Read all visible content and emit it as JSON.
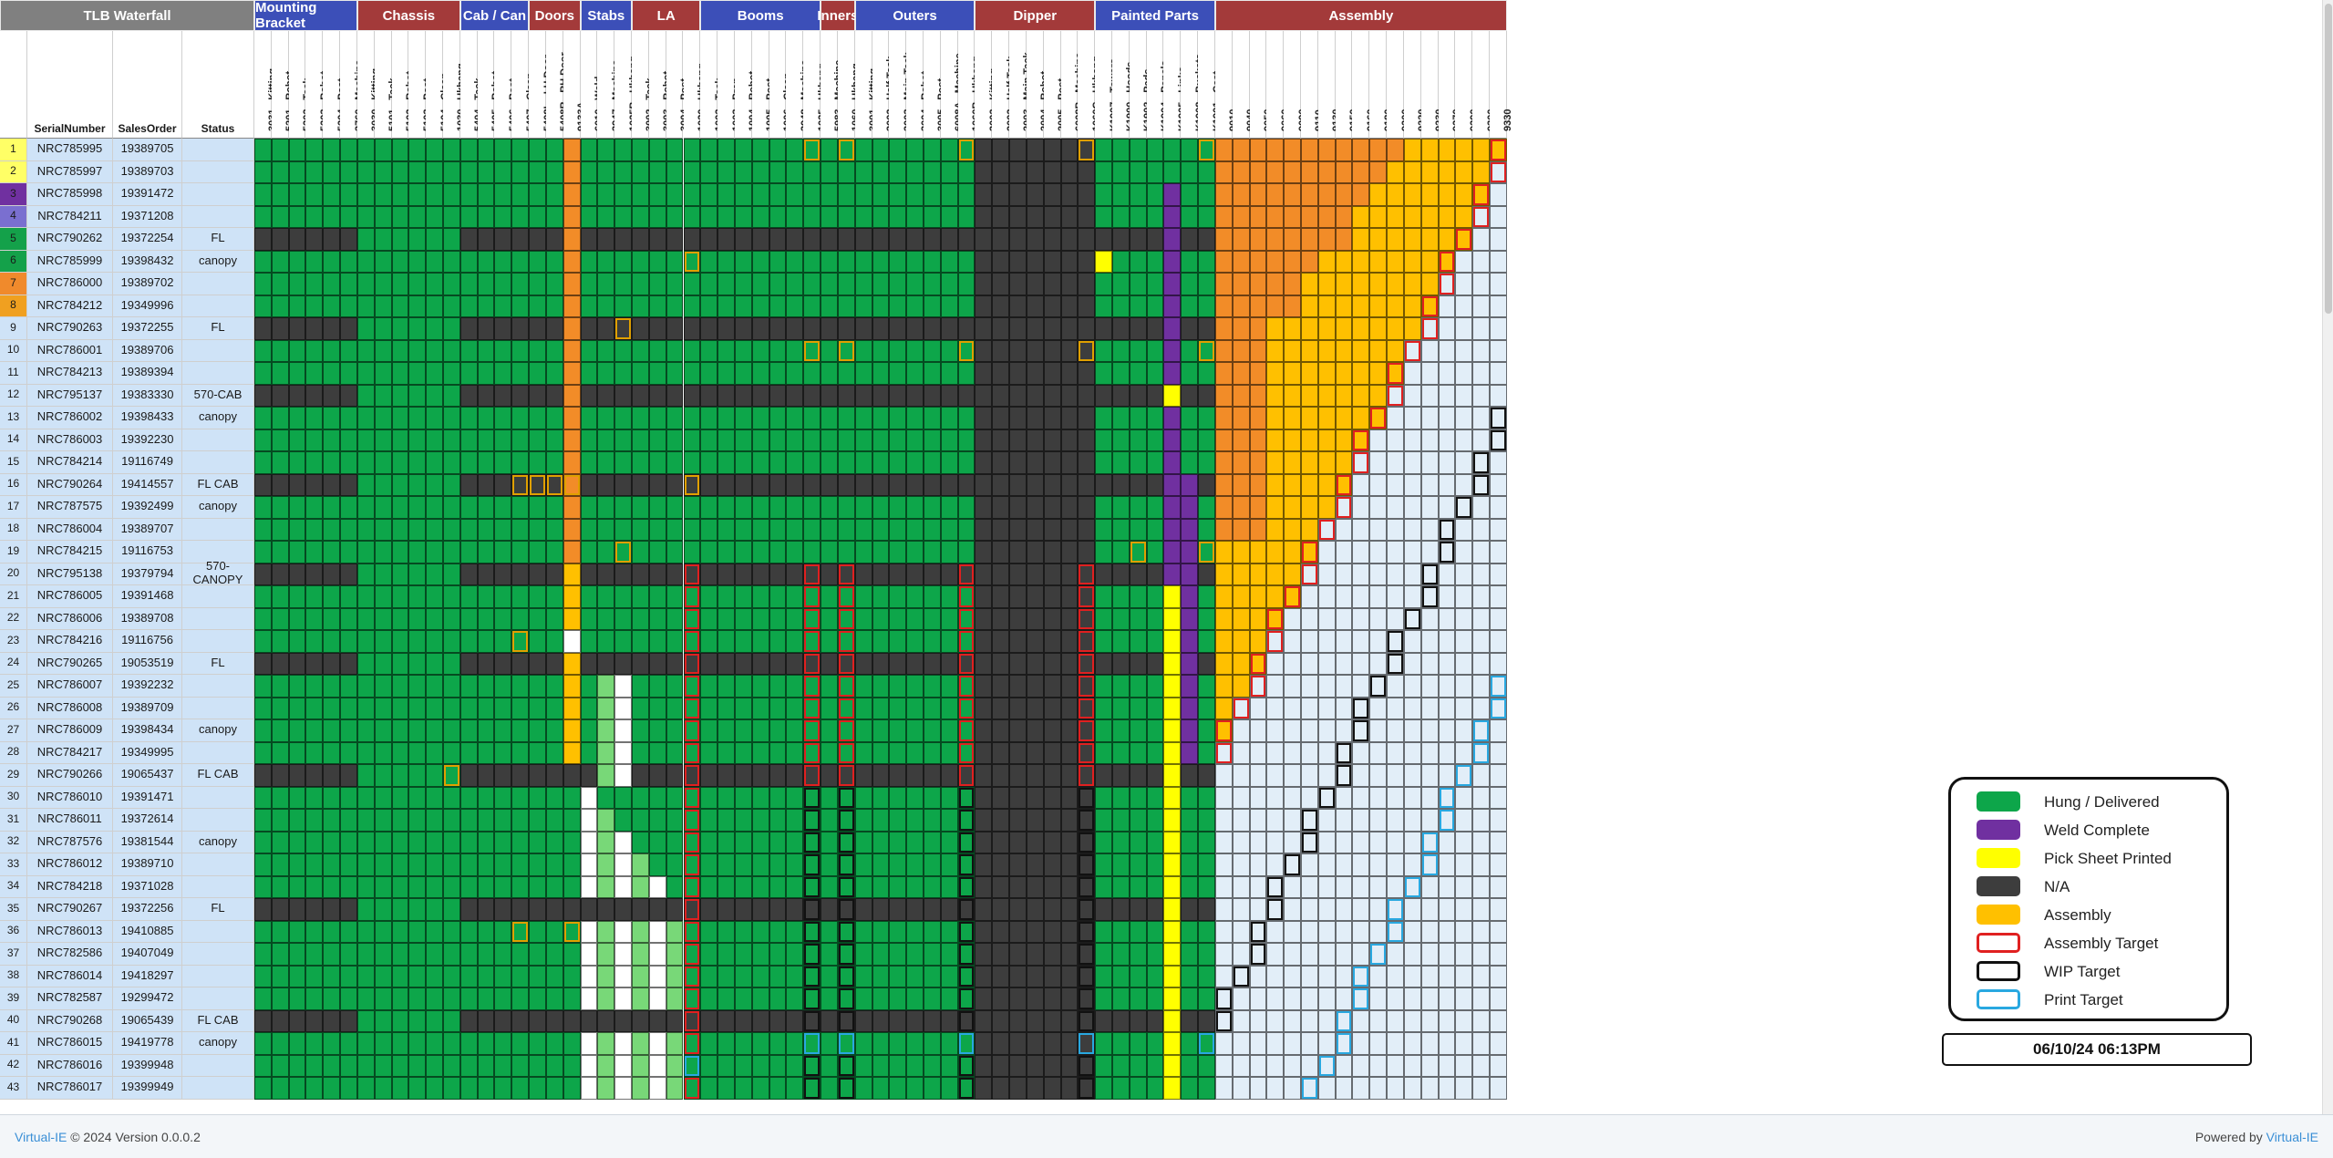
{
  "title": "TLB Waterfall",
  "info_headers": [
    "SerialNumber",
    "SalesOrder",
    "Status"
  ],
  "groups": [
    {
      "name": "Mounting Bracket",
      "color": "#3c4fb8",
      "columns": [
        "3031 - Kitting",
        "5201 - Robot",
        "5202 - Tack",
        "5203 - Robot",
        "5204 - Post",
        "3760 - Machine"
      ]
    },
    {
      "name": "Chassis",
      "color": "#a33a3a",
      "columns": [
        "3030 - Kitting",
        "5101 - Tack",
        "5102 - Robot",
        "5103 - Post",
        "5104 - Clean",
        "1030 - Ukhang"
      ]
    },
    {
      "name": "Cab / Can",
      "color": "#3c4fb8",
      "columns": [
        "5404 - Tack",
        "5405 - Robot",
        "5406 - Post",
        "5407 - Clean"
      ]
    },
    {
      "name": "Doors",
      "color": "#a33a3a",
      "columns": [
        "5408L - LH Door",
        "5408R - RH Door",
        "9133A"
      ]
    },
    {
      "name": "Stabs",
      "color": "#3c4fb8",
      "columns": [
        "6010 - Weld",
        "3947 - Machine",
        "1025B - Ukhang"
      ]
    },
    {
      "name": "LA",
      "color": "#a33a3a",
      "columns": [
        "3002 - Tack",
        "3003 - Robot",
        "3004 - Post",
        "1020 - Ukhang"
      ]
    },
    {
      "name": "Booms",
      "color": "#3c4fb8",
      "columns": [
        "1002 - Tack",
        "1003 - Prep",
        "1004 - Robot",
        "1005 - Post",
        "1006 - Clean",
        "3948 - Machine",
        "1025 - Ukhang"
      ]
    },
    {
      "name": "Inners",
      "color": "#a33a3a",
      "columns": [
        "5983 - Machine",
        "1060 - Ukhang"
      ]
    },
    {
      "name": "Outers",
      "color": "#3c4fb8",
      "columns": [
        "3001 - Kitting",
        "3002 - Half Tack",
        "3003 - Main Tack",
        "3004 - Robot",
        "3005 - Post",
        "6008A - Machine",
        "1060B - Ukhang"
      ]
    },
    {
      "name": "Dipper",
      "color": "#a33a3a",
      "columns": [
        "3002 - Kitting",
        "2002 - Half Tack",
        "2003 - Main Tack",
        "2004 - Robot",
        "2005 - Post",
        "6008B - Machine",
        "1060C - Ukhang"
      ]
    },
    {
      "name": "Painted Parts",
      "color": "#3c4fb8",
      "columns": [
        "K1907 - Towers",
        "K1900 - Hoods",
        "K1902 - Pads",
        "K1904 - Panels",
        "K1905 - Links",
        "K1908 - Buckets",
        "K1901 - Cast"
      ]
    },
    {
      "name": "Assembly",
      "color": "#a33a3a",
      "columns": [
        "9010",
        "9040",
        "9050",
        "9060",
        "9090",
        "9110",
        "9130",
        "9150",
        "9160",
        "9180",
        "9200",
        "9220",
        "9230",
        "9270",
        "9290",
        "9300",
        "9330"
      ]
    }
  ],
  "rows": [
    {
      "n": "1",
      "serial": "NRC785995",
      "so": "19389705",
      "status": ""
    },
    {
      "n": "2",
      "serial": "NRC785997",
      "so": "19389703",
      "status": ""
    },
    {
      "n": "3",
      "serial": "NRC785998",
      "so": "19391472",
      "status": ""
    },
    {
      "n": "4",
      "serial": "NRC784211",
      "so": "19371208",
      "status": ""
    },
    {
      "n": "5",
      "serial": "NRC790262",
      "so": "19372254",
      "status": "FL"
    },
    {
      "n": "6",
      "serial": "NRC785999",
      "so": "19398432",
      "status": "canopy"
    },
    {
      "n": "7",
      "serial": "NRC786000",
      "so": "19389702",
      "status": ""
    },
    {
      "n": "8",
      "serial": "NRC784212",
      "so": "19349996",
      "status": ""
    },
    {
      "n": "9",
      "serial": "NRC790263",
      "so": "19372255",
      "status": "FL"
    },
    {
      "n": "10",
      "serial": "NRC786001",
      "so": "19389706",
      "status": ""
    },
    {
      "n": "11",
      "serial": "NRC784213",
      "so": "19389394",
      "status": ""
    },
    {
      "n": "12",
      "serial": "NRC795137",
      "so": "19383330",
      "status": "570-CAB"
    },
    {
      "n": "13",
      "serial": "NRC786002",
      "so": "19398433",
      "status": "canopy"
    },
    {
      "n": "14",
      "serial": "NRC786003",
      "so": "19392230",
      "status": ""
    },
    {
      "n": "15",
      "serial": "NRC784214",
      "so": "19116749",
      "status": ""
    },
    {
      "n": "16",
      "serial": "NRC790264",
      "so": "19414557",
      "status": "FL CAB"
    },
    {
      "n": "17",
      "serial": "NRC787575",
      "so": "19392499",
      "status": "canopy"
    },
    {
      "n": "18",
      "serial": "NRC786004",
      "so": "19389707",
      "status": ""
    },
    {
      "n": "19",
      "serial": "NRC784215",
      "so": "19116753",
      "status": ""
    },
    {
      "n": "20",
      "serial": "NRC795138",
      "so": "19379794",
      "status": "570-CANOPY"
    },
    {
      "n": "21",
      "serial": "NRC786005",
      "so": "19391468",
      "status": ""
    },
    {
      "n": "22",
      "serial": "NRC786006",
      "so": "19389708",
      "status": ""
    },
    {
      "n": "23",
      "serial": "NRC784216",
      "so": "19116756",
      "status": ""
    },
    {
      "n": "24",
      "serial": "NRC790265",
      "so": "19053519",
      "status": "FL"
    },
    {
      "n": "25",
      "serial": "NRC786007",
      "so": "19392232",
      "status": ""
    },
    {
      "n": "26",
      "serial": "NRC786008",
      "so": "19389709",
      "status": ""
    },
    {
      "n": "27",
      "serial": "NRC786009",
      "so": "19398434",
      "status": "canopy"
    },
    {
      "n": "28",
      "serial": "NRC784217",
      "so": "19349995",
      "status": ""
    },
    {
      "n": "29",
      "serial": "NRC790266",
      "so": "19065437",
      "status": "FL CAB"
    },
    {
      "n": "30",
      "serial": "NRC786010",
      "so": "19391471",
      "status": ""
    },
    {
      "n": "31",
      "serial": "NRC786011",
      "so": "19372614",
      "status": ""
    },
    {
      "n": "32",
      "serial": "NRC787576",
      "so": "19381544",
      "status": "canopy"
    },
    {
      "n": "33",
      "serial": "NRC786012",
      "so": "19389710",
      "status": ""
    },
    {
      "n": "34",
      "serial": "NRC784218",
      "so": "19371028",
      "status": ""
    },
    {
      "n": "35",
      "serial": "NRC790267",
      "so": "19372256",
      "status": "FL"
    },
    {
      "n": "36",
      "serial": "NRC786013",
      "so": "19410885",
      "status": ""
    },
    {
      "n": "37",
      "serial": "NRC782586",
      "so": "19407049",
      "status": ""
    },
    {
      "n": "38",
      "serial": "NRC786014",
      "so": "19418297",
      "status": ""
    },
    {
      "n": "39",
      "serial": "NRC782587",
      "so": "19299472",
      "status": ""
    },
    {
      "n": "40",
      "serial": "NRC790268",
      "so": "19065439",
      "status": "FL CAB"
    },
    {
      "n": "41",
      "serial": "NRC786015",
      "so": "19419778",
      "status": "canopy"
    },
    {
      "n": "42",
      "serial": "NRC786016",
      "so": "19399948",
      "status": ""
    },
    {
      "n": "43",
      "serial": "NRC786017",
      "so": "19399949",
      "status": ""
    }
  ],
  "row_number_colors": {
    "1": "#ffff66",
    "2": "#ffff66",
    "3": "#7030a0",
    "4": "#7a6fd0",
    "5": "#14a14a",
    "6": "#14a14a",
    "7": "#f08a2c",
    "8": "#f0a020"
  },
  "status_colors": {
    "hung": "#0da64a",
    "weld": "#7030a0",
    "pick": "#ffff00",
    "na": "#3d3d3d",
    "assembly": "#ffc000",
    "assembly_orange": "#f28c28",
    "empty": "#e2eef8",
    "light_green": "#78d878",
    "white": "#ffffff"
  },
  "legend": {
    "items": [
      {
        "label": "Hung / Delivered",
        "color": "#0da64a",
        "kind": "fill"
      },
      {
        "label": "Weld Complete",
        "color": "#7030a0",
        "kind": "fill"
      },
      {
        "label": "Pick Sheet Printed",
        "color": "#ffff00",
        "kind": "fill"
      },
      {
        "label": "N/A",
        "color": "#3d3d3d",
        "kind": "fill"
      },
      {
        "label": "Assembly",
        "color": "#ffc000",
        "kind": "fill"
      },
      {
        "label": "Assembly Target",
        "color": "#e02020",
        "kind": "outline"
      },
      {
        "label": "WIP Target",
        "color": "#111111",
        "kind": "outline"
      },
      {
        "label": "Print Target",
        "color": "#29a8e0",
        "kind": "outline"
      }
    ]
  },
  "timestamp": "06/10/24 06:13PM",
  "footer": {
    "left_brand": "Virtual-IE",
    "left_text": " © 2024 Version 0.0.0.2",
    "right_text": "Powered by ",
    "right_brand": "Virtual-IE"
  }
}
